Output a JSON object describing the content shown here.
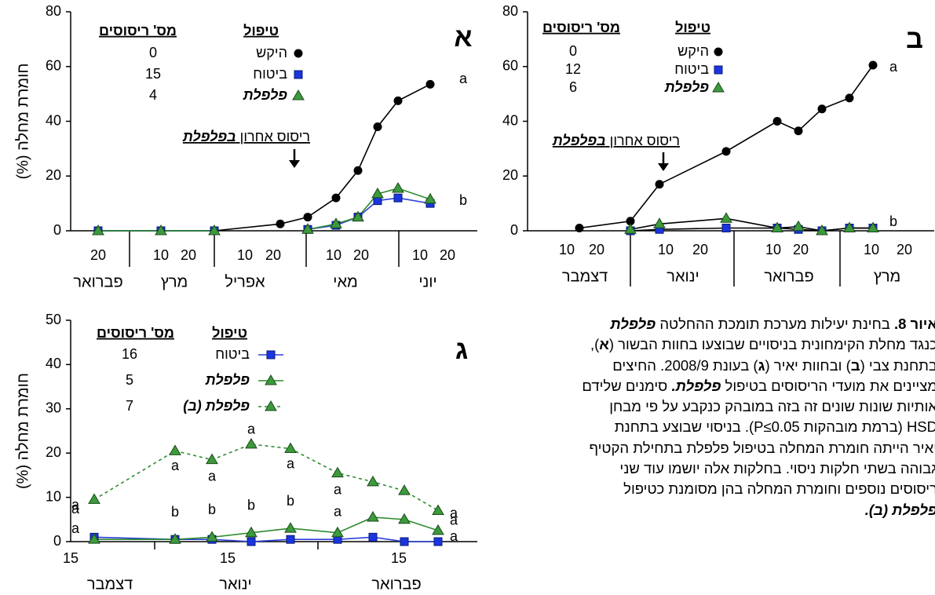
{
  "chart_data": [
    {
      "type": "line",
      "panel": "א",
      "ylabel": "חומרת מחלה (%)",
      "ylim": [
        0,
        80
      ],
      "yticks": [
        0,
        20,
        40,
        60,
        80
      ],
      "categories": [
        null,
        null,
        null,
        null,
        null,
        null,
        null,
        null,
        null,
        null
      ],
      "xtick_labels": [
        "20",
        "10",
        "20",
        "10",
        "20",
        "10",
        "20",
        "10",
        "20"
      ],
      "months": [
        "פברואר",
        "מרץ",
        "אפריל",
        "מאי",
        "יוני"
      ],
      "legend_headers": [
        "טיפול",
        "מס' ריסוסים"
      ],
      "annotation": [
        "ריסוס אחרון ",
        "בפלפלת"
      ],
      "end_letters": [
        "a",
        "b"
      ],
      "series": [
        {
          "name": "היקש",
          "marker": "circle",
          "color": "#000000",
          "line_color": "#000000",
          "sprays": "0",
          "values": [
            0,
            0,
            0,
            2.5,
            5,
            12,
            22,
            38,
            47.5,
            53.5
          ]
        },
        {
          "name": "ביטוח",
          "marker": "square",
          "color": "#1a35e0",
          "line_color": "#2a3fd8",
          "sprays": "15",
          "values": [
            0,
            0,
            0,
            null,
            0.5,
            2,
            5,
            11,
            12,
            10
          ]
        },
        {
          "name": "פלפלת",
          "marker": "triangle",
          "color": "#3c9a3c",
          "line_color": "#2e8b2e",
          "sprays": "4",
          "name_style": "bold-italic",
          "values": [
            0,
            0,
            0,
            null,
            0.5,
            2.5,
            5,
            13.5,
            15.5,
            11.5
          ]
        }
      ]
    },
    {
      "type": "line",
      "panel": "ב",
      "ylim": [
        0,
        80
      ],
      "yticks": [
        0,
        20,
        40,
        60,
        80
      ],
      "categories": [
        null,
        null,
        null,
        null,
        null,
        null,
        null,
        null,
        null
      ],
      "xtick_labels": [
        "10",
        "20",
        "10",
        "20",
        "10",
        "20",
        "10",
        "20"
      ],
      "months": [
        "דצמבר",
        "ינואר",
        "פברואר",
        "מרץ"
      ],
      "legend_headers": [
        "טיפול",
        "מס' ריסוסים"
      ],
      "annotation": [
        "ריסוס אחרון ",
        "בפלפלת"
      ],
      "end_letters": [
        "a",
        "b"
      ],
      "series": [
        {
          "name": "היקש",
          "marker": "circle",
          "color": "#000000",
          "line_color": "#000000",
          "sprays": "0",
          "values": [
            1,
            3.5,
            17,
            29,
            40,
            36.5,
            44.5,
            48.5,
            60.5
          ]
        },
        {
          "name": "ביטוח",
          "marker": "square",
          "color": "#1a35e0",
          "line_color": "#000000",
          "sprays": "12",
          "values": [
            null,
            0,
            0.5,
            1,
            1,
            0.5,
            0,
            1,
            1
          ]
        },
        {
          "name": "פלפלת",
          "marker": "triangle",
          "color": "#3c9a3c",
          "line_color": "#000000",
          "sprays": "6",
          "name_style": "bold-italic",
          "values": [
            null,
            0.5,
            2.5,
            4.5,
            1,
            1.5,
            0,
            1,
            1
          ]
        }
      ]
    },
    {
      "type": "line",
      "panel": "ג",
      "ylabel": "חומרת מחלה (%)",
      "ylim": [
        0,
        50
      ],
      "yticks": [
        0,
        10,
        20,
        30,
        40,
        50
      ],
      "categories": [
        null,
        null,
        null,
        null,
        null,
        null,
        null,
        null,
        null
      ],
      "xtick_labels": [
        "15",
        "15",
        "15"
      ],
      "months": [
        "דצמבר",
        "ינואר",
        "פברואר"
      ],
      "legend_headers": [
        "טיפול",
        "מס' ריסוסים"
      ],
      "series": [
        {
          "name": "ביטוח",
          "marker": "square",
          "color": "#1a35e0",
          "line_color": "#2a3fd8",
          "sprays": "16",
          "values": [
            1,
            0.5,
            0.5,
            0,
            0.5,
            0.5,
            1,
            0,
            0
          ],
          "letters": [
            "a",
            null,
            null,
            null,
            null,
            null,
            null,
            null,
            "a"
          ]
        },
        {
          "name": "פלפלת",
          "marker": "triangle",
          "color": "#3c9a3c",
          "line_color": "#2e8b2e",
          "sprays": "5",
          "name_style": "bold-italic",
          "values": [
            0.5,
            0.5,
            1,
            2,
            3,
            2,
            5.5,
            5,
            2.5
          ],
          "letters": [
            "a",
            "b",
            "b",
            "b",
            "b",
            "a",
            null,
            null,
            "a"
          ]
        },
        {
          "name": "פלפלת (ב)",
          "marker": "triangle",
          "color": "#3c9a3c",
          "line_color": "#2e8b2e",
          "dashed": true,
          "sprays": "7",
          "name_style": "bold-italic",
          "values": [
            9.5,
            20.5,
            18.5,
            22,
            21,
            15.5,
            13.5,
            11.5,
            7
          ],
          "letters": [
            "a",
            "a",
            "a",
            "a",
            "a",
            "a",
            null,
            null,
            "a"
          ]
        }
      ]
    }
  ],
  "caption": {
    "lines": [
      [
        {
          "text": "איור 8.",
          "style": "b"
        },
        {
          "text": " בחינת יעילות מערכת תומכת ההחלטה "
        },
        {
          "text": "פלפלת",
          "style": "bi"
        }
      ],
      [
        {
          "text": "כנגד מחלת הקימחונית בניסויים שבוצעו בחוות הבשור ("
        },
        {
          "text": "א",
          "style": "b"
        },
        {
          "text": "),"
        }
      ],
      [
        {
          "text": "בתחנת צבי ("
        },
        {
          "text": "ב",
          "style": "b"
        },
        {
          "text": ") ובחוות יאיר ("
        },
        {
          "text": "ג",
          "style": "b"
        },
        {
          "text": ") בעונת 2008/9. החיצים"
        }
      ],
      [
        {
          "text": "מציינים את מועדי הריסוסים בטיפול "
        },
        {
          "text": "פלפלת.",
          "style": "bi"
        },
        {
          "text": " סימנים שלידם"
        }
      ],
      [
        {
          "text": "אותיות שונות שונים זה בזה במובהק כנקבע על פי מבחן"
        }
      ],
      [
        {
          "text": "HSD (ברמת מובהקות P≤0.05). בניסוי שבוצע בתחנת"
        }
      ],
      [
        {
          "text": "יאיר הייתה חומרת המחלה בטיפול פלפלת בתחילת הקטיף"
        }
      ],
      [
        {
          "text": "גבוהה בשתי חלקות ניסוי. בחלקות אלה יושמו עוד שני"
        }
      ],
      [
        {
          "text": "ריסוסים נוספים וחומרת המחלה בהן מסומנת כטיפול"
        }
      ],
      [
        {
          "text": "פלפלת (ב).",
          "style": "bi"
        }
      ]
    ]
  }
}
